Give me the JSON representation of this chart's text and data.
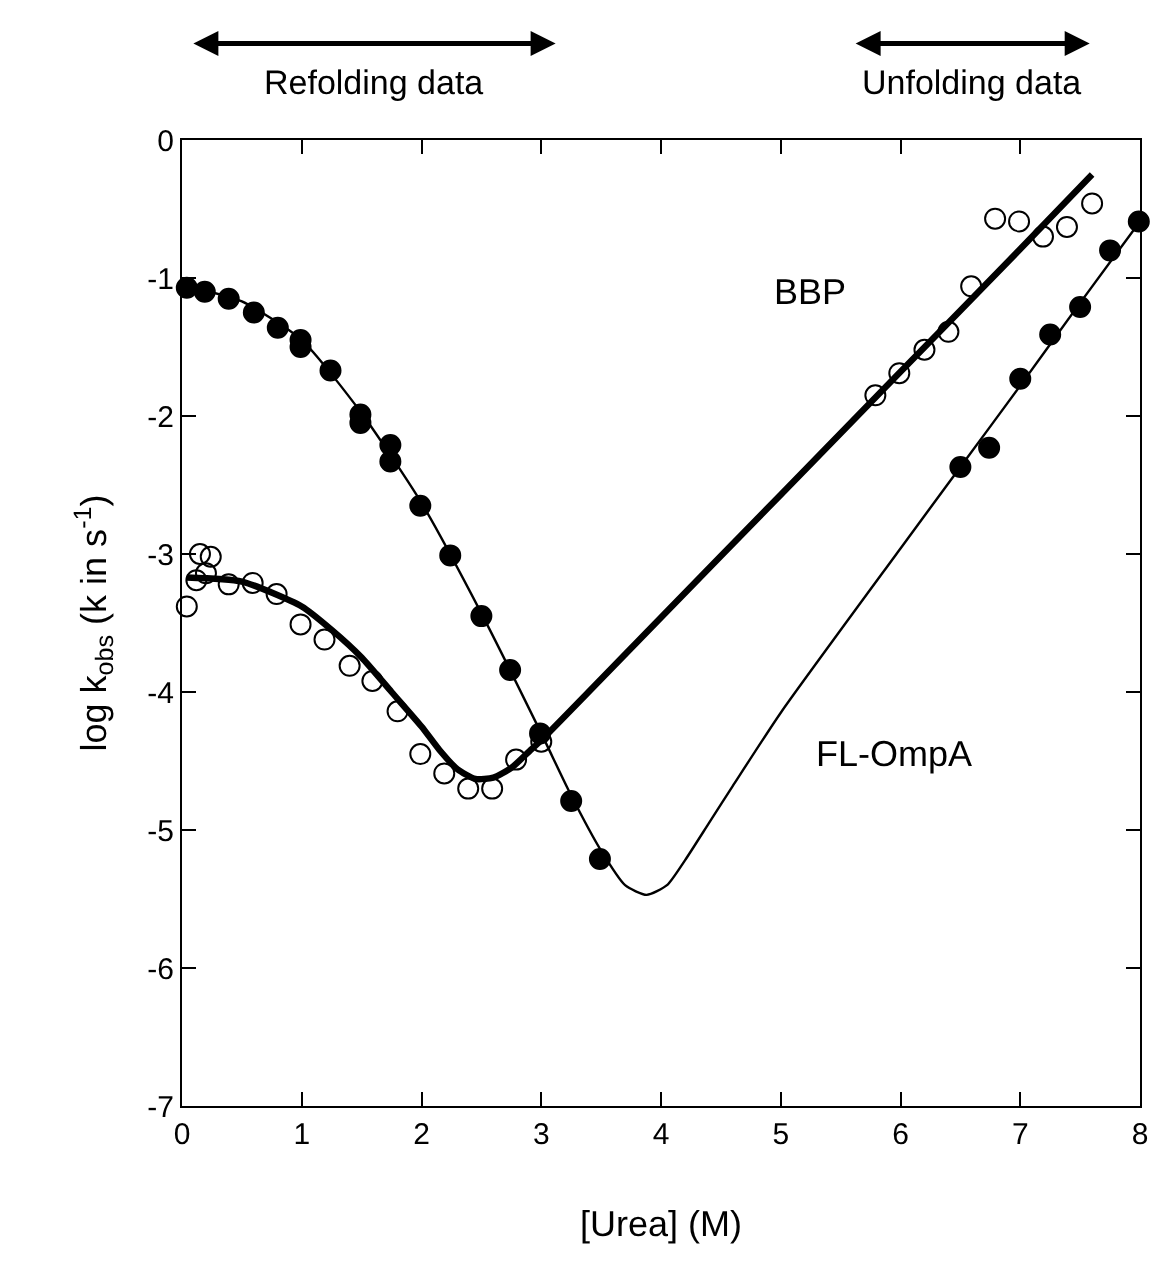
{
  "chart_data": {
    "type": "scatter",
    "xlabel": "[Urea] (M)",
    "ylabel": "log k$_{obs}$ (k in s$^{-1}$)",
    "annotations": [
      "Refolding data",
      "Unfolding data"
    ],
    "xlim": [
      0,
      8
    ],
    "ylim": [
      -7,
      0
    ],
    "xticks": [
      0,
      1,
      2,
      3,
      4,
      5,
      6,
      7,
      8
    ],
    "yticks": [
      -7,
      -6,
      -5,
      -4,
      -3,
      -2,
      -1,
      0
    ],
    "series": [
      {
        "marker": "circle",
        "color": "#000000",
        "x": [
          0.04,
          0.19,
          0.39,
          0.6,
          0.8,
          0.99,
          0.99,
          1.24,
          1.49,
          1.49,
          1.74,
          1.74,
          1.99,
          2.24,
          2.5,
          2.74,
          2.99,
          3.25,
          3.49,
          6.5,
          6.74,
          7.0,
          7.25,
          7.5,
          7.75,
          7.99
        ],
        "values": [
          -1.07,
          -1.1,
          -1.15,
          -1.25,
          -1.36,
          -1.45,
          -1.5,
          -1.67,
          -1.99,
          -2.05,
          -2.21,
          -2.33,
          -2.65,
          -3.01,
          -3.45,
          -3.84,
          -4.3,
          -4.79,
          -5.21,
          -2.37,
          -2.23,
          -1.73,
          -1.41,
          -1.21,
          -0.8,
          -0.59
        ]
      },
      {
        "marker": "circle",
        "color": "#000000",
        "x": [
          0.04,
          0.15,
          0.24,
          0.12,
          0.2,
          0.39,
          0.59,
          0.79,
          0.99,
          1.19,
          1.4,
          1.59,
          1.8,
          1.99,
          2.19,
          2.39,
          2.59,
          2.79,
          3.0,
          5.79,
          5.99,
          6.2,
          6.4,
          6.59,
          6.79,
          6.99,
          7.19,
          7.39,
          7.6
        ],
        "values": [
          -3.38,
          -3.0,
          -3.02,
          -3.19,
          -3.14,
          -3.22,
          -3.21,
          -3.29,
          -3.51,
          -3.62,
          -3.81,
          -3.92,
          -4.14,
          -4.45,
          -4.59,
          -4.7,
          -4.7,
          -4.49,
          -4.36,
          -1.85,
          -1.69,
          -1.52,
          -1.39,
          -1.06,
          -0.57,
          -0.59,
          -0.7,
          -0.63,
          -0.46
        ]
      },
      {
        "type": "line",
        "name": "FL-OmpA",
        "color": "#000000",
        "line_style": "solid",
        "x": [
          0,
          0.5,
          1,
          1.5,
          2,
          2.5,
          3,
          3.25,
          3.5,
          3.7,
          3.88,
          4.05,
          4.2,
          4.4,
          4.6,
          5,
          6,
          6.5,
          7,
          7.5,
          8
        ],
        "values": [
          -1.05,
          -1.17,
          -1.45,
          -1.98,
          -2.63,
          -3.43,
          -4.3,
          -4.75,
          -5.15,
          -5.4,
          -5.47,
          -5.4,
          -5.22,
          -4.95,
          -4.68,
          -4.15,
          -2.96,
          -2.37,
          -1.78,
          -1.18,
          -0.59
        ]
      },
      {
        "type": "line",
        "name": "BBP",
        "color": "#000000",
        "line_style": "solid",
        "x": [
          0.04,
          0.5,
          1,
          1.25,
          1.5,
          1.75,
          2,
          2.15,
          2.3,
          2.45,
          2.6,
          2.75,
          2.9,
          3,
          4,
          5,
          6,
          7,
          7.6
        ],
        "values": [
          -3.17,
          -3.2,
          -3.38,
          -3.55,
          -3.75,
          -4.0,
          -4.25,
          -4.42,
          -4.56,
          -4.63,
          -4.62,
          -4.55,
          -4.43,
          -4.35,
          -3.46,
          -2.57,
          -1.68,
          -0.79,
          -0.25
        ]
      }
    ]
  }
}
